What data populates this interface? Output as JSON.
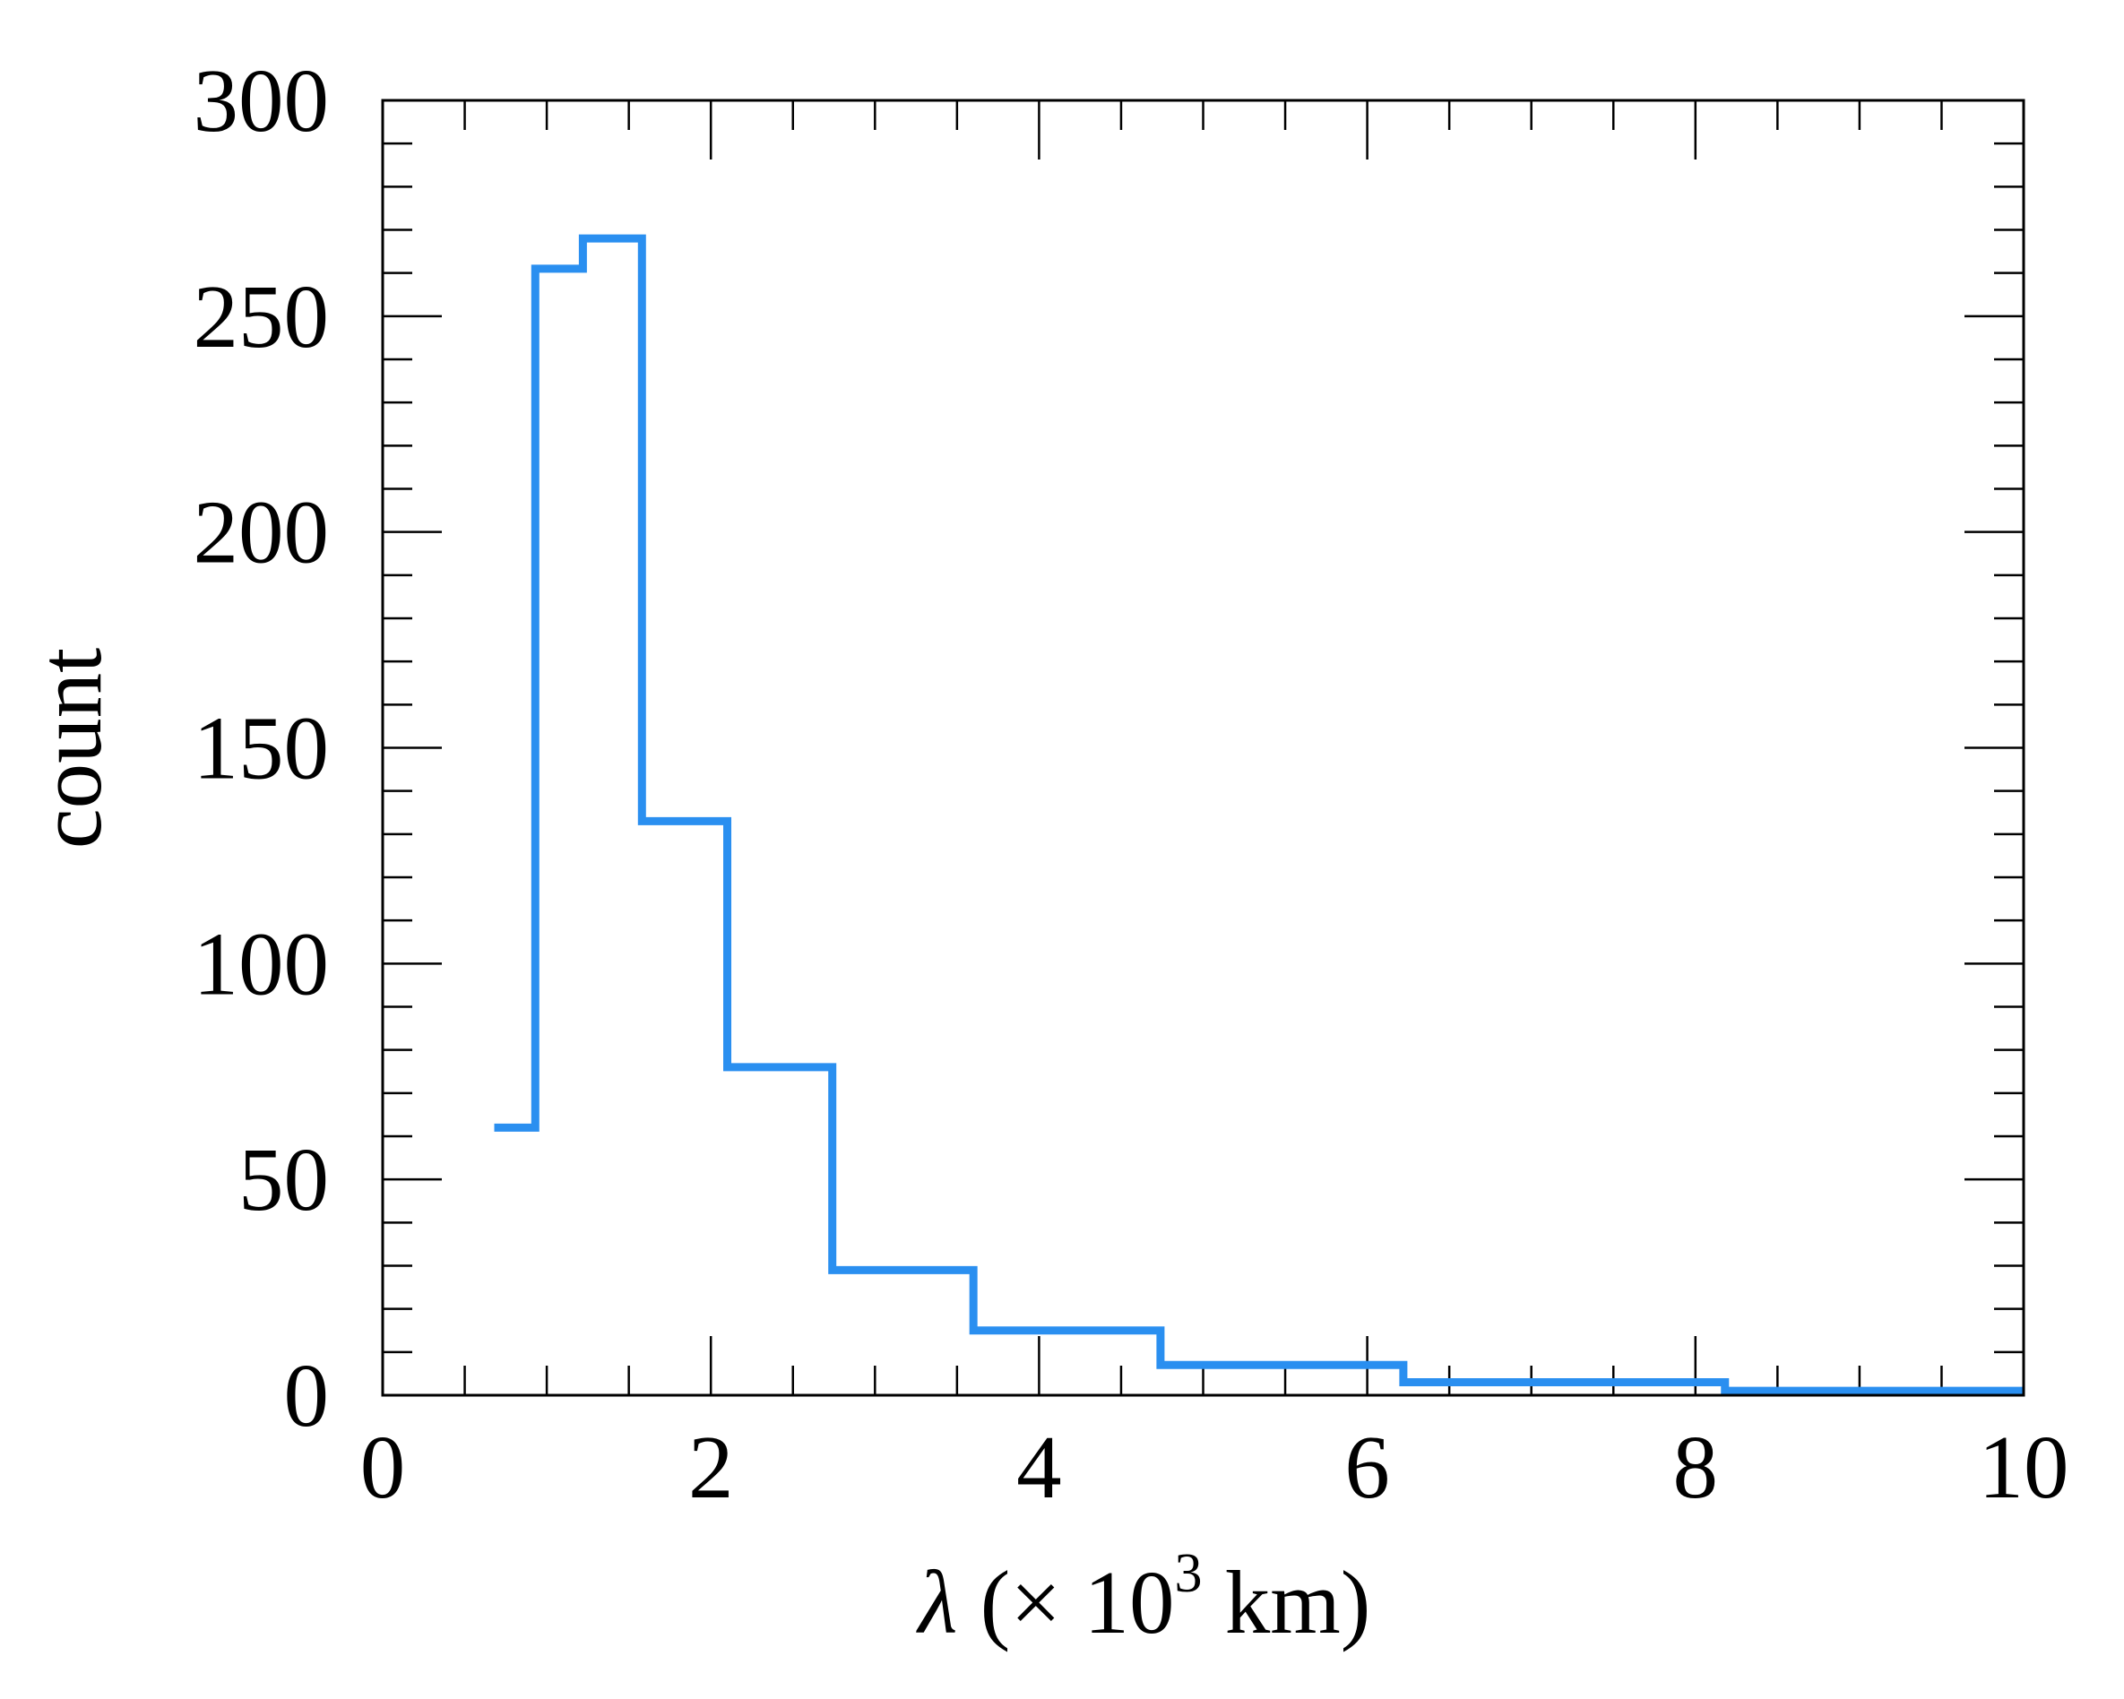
{
  "chart_data": {
    "type": "histogram",
    "xlabel": {
      "symbol": "λ",
      "prefix": " (× 10",
      "exponent": "3",
      "suffix": " km)"
    },
    "ylabel": "count",
    "xlim": [
      0,
      10
    ],
    "ylim": [
      0,
      300
    ],
    "x_ticks": [
      "0",
      "2",
      "4",
      "6",
      "8",
      "10"
    ],
    "y_ticks": [
      "0",
      "50",
      "100",
      "150",
      "200",
      "250",
      "300"
    ],
    "grid": false,
    "line_color": "#2a8ff0",
    "bins": [
      {
        "x0": 0.68,
        "x1": 0.93,
        "count": 62
      },
      {
        "x0": 0.93,
        "x1": 1.22,
        "count": 261
      },
      {
        "x0": 1.22,
        "x1": 1.58,
        "count": 268
      },
      {
        "x0": 1.58,
        "x1": 2.1,
        "count": 133
      },
      {
        "x0": 2.1,
        "x1": 2.74,
        "count": 76
      },
      {
        "x0": 2.74,
        "x1": 3.6,
        "count": 29
      },
      {
        "x0": 3.6,
        "x1": 4.74,
        "count": 15
      },
      {
        "x0": 4.74,
        "x1": 6.22,
        "count": 7
      },
      {
        "x0": 6.22,
        "x1": 8.18,
        "count": 3
      },
      {
        "x0": 8.18,
        "x1": 10.0,
        "count": 1
      }
    ]
  }
}
